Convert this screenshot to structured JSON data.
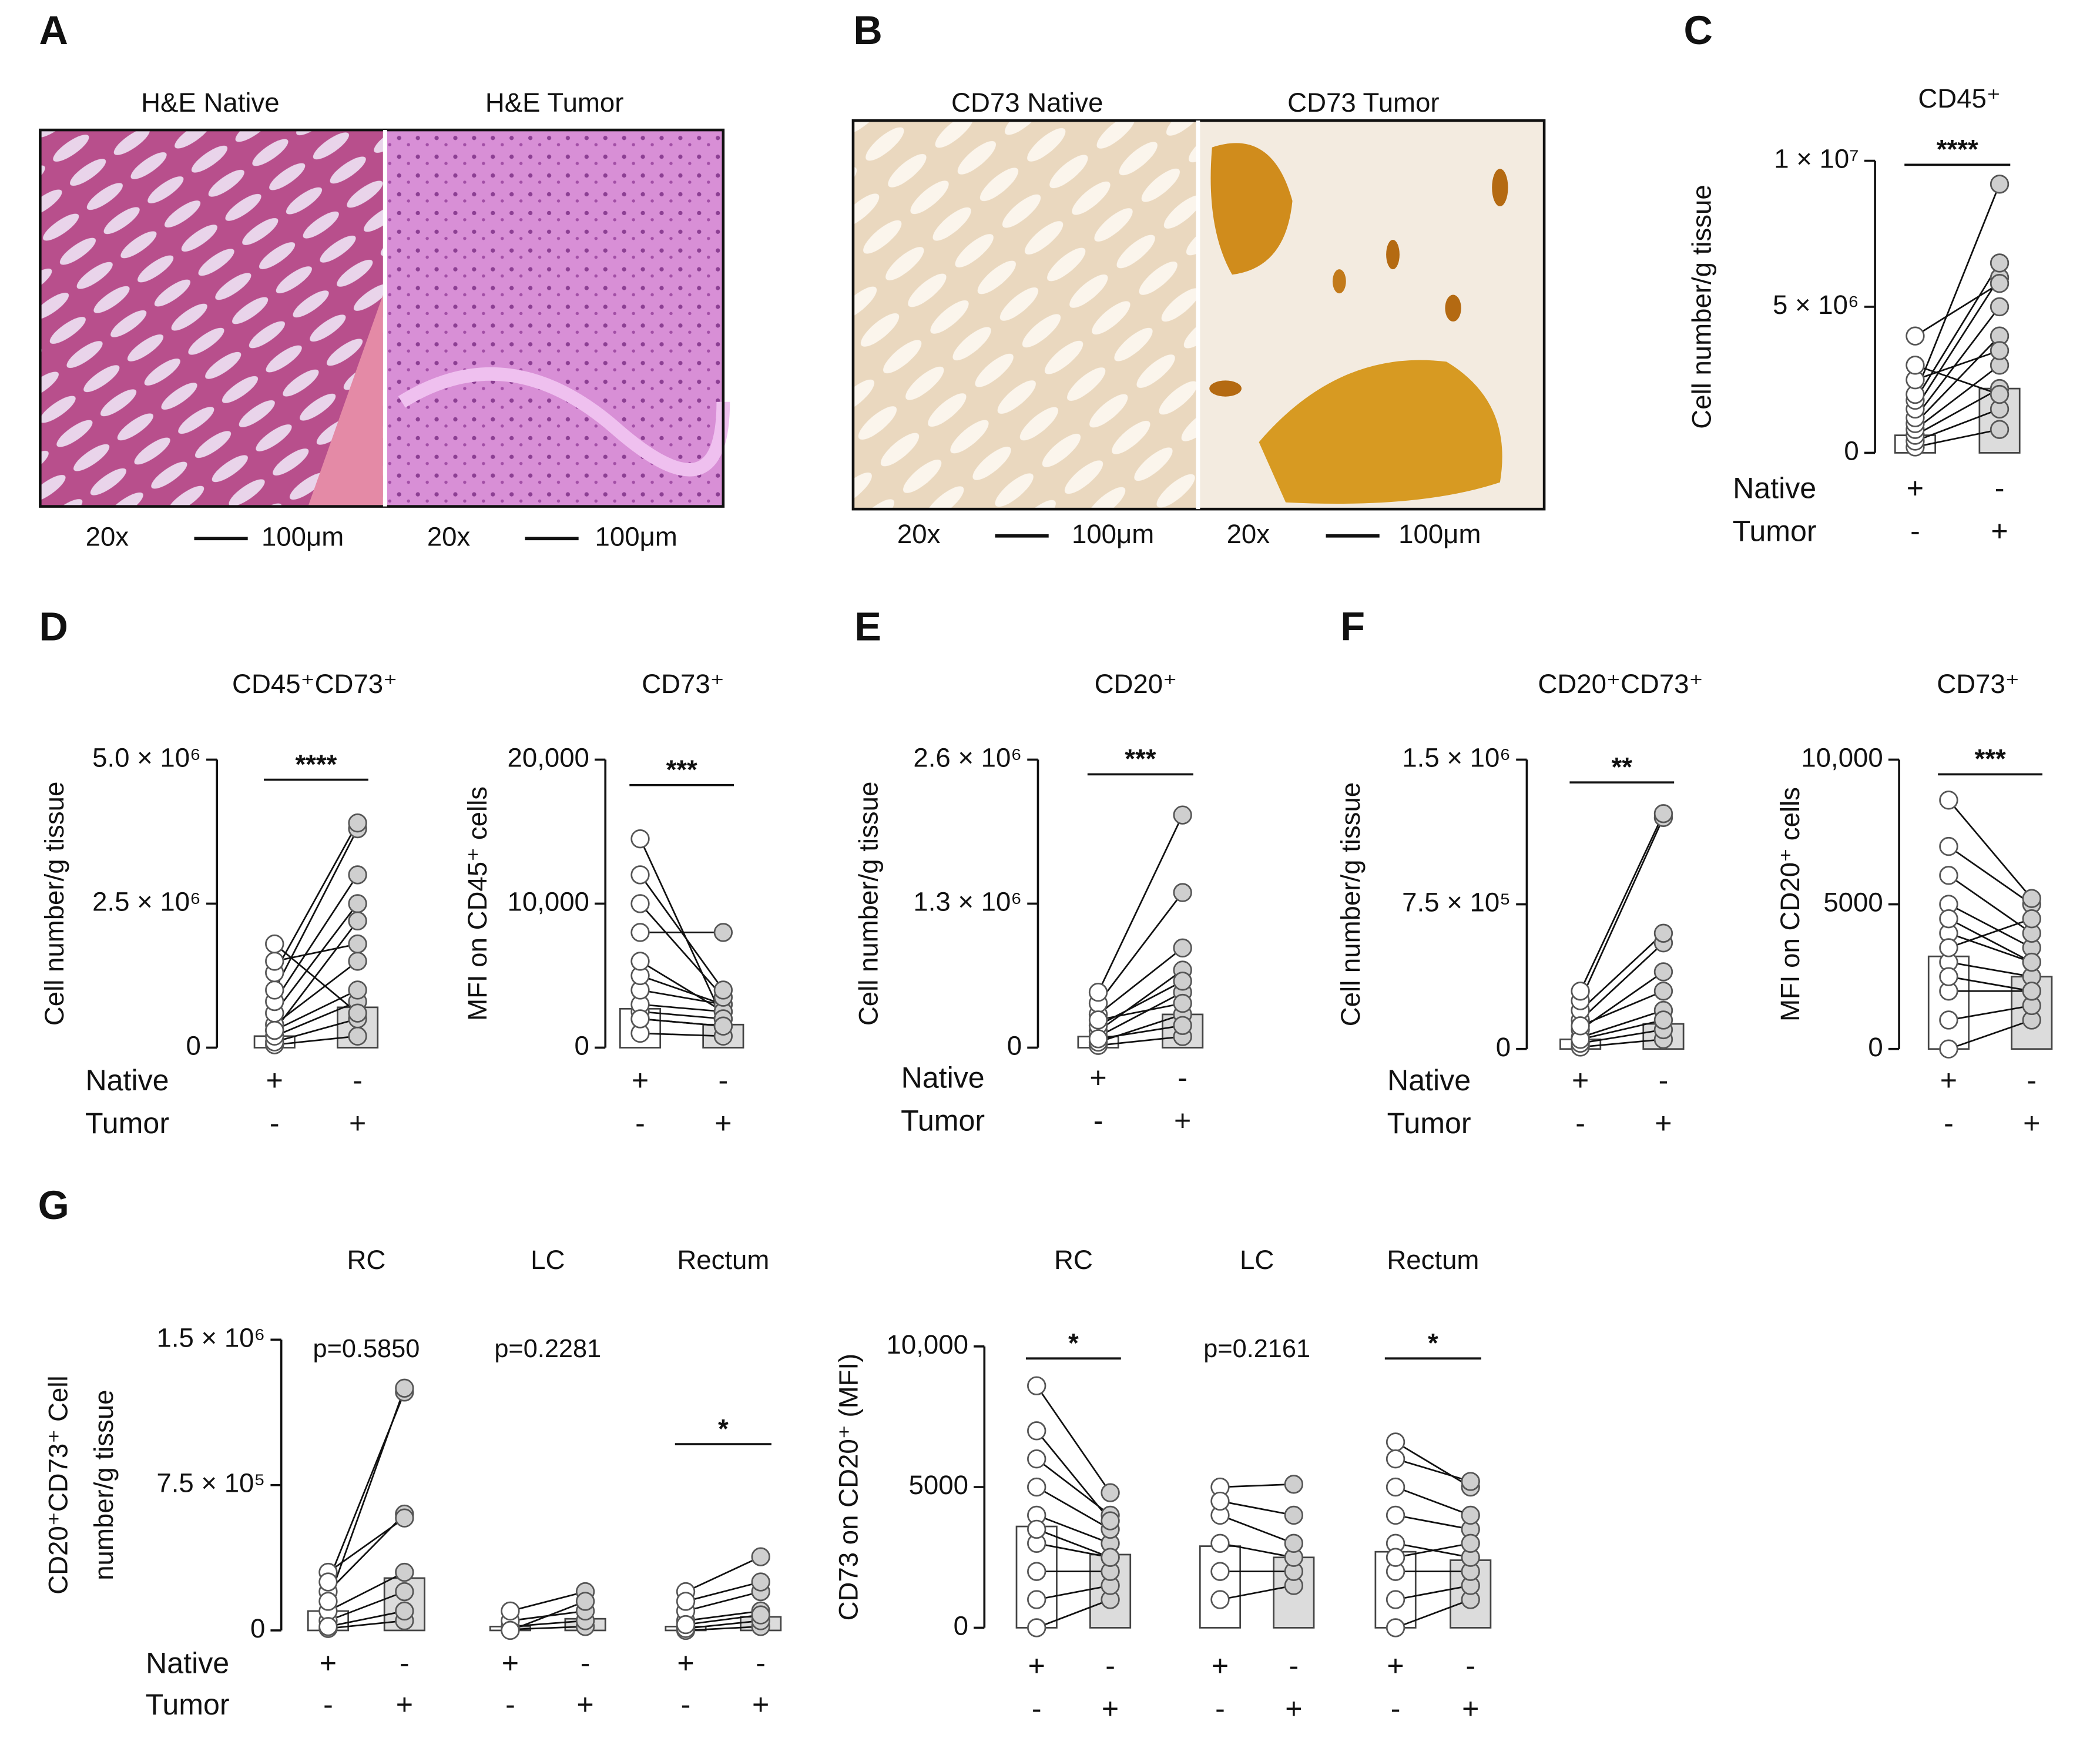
{
  "figure": {
    "panel_labels": [
      "A",
      "B",
      "C",
      "D",
      "E",
      "F",
      "G"
    ],
    "images": [
      {
        "titles": [
          "H&E Native",
          "H&E Tumor"
        ],
        "captions": [
          [
            "20x",
            "100μm"
          ],
          [
            "20x",
            "100μm"
          ]
        ]
      },
      {
        "titles": [
          "CD73 Native",
          "CD73 Tumor"
        ],
        "captions": [
          [
            "20x",
            "100μm"
          ],
          [
            "20x",
            "100μm"
          ]
        ]
      }
    ]
  },
  "chart_data": [
    {
      "type": "paired",
      "title": "CD45⁺",
      "ylabel": "Cell number/g tissue",
      "ylim": [
        0,
        10000000
      ],
      "yticks": [
        0,
        {
          "value": 5000000,
          "label": "5 × 10⁶"
        },
        {
          "value": 10000000,
          "label": "1 × 10⁷"
        }
      ],
      "row_labels": [
        "Native",
        "Tumor"
      ],
      "groups": [
        {
          "significance": "****",
          "bracket": true,
          "columns": [
            {
              "signs": [
                "+",
                "-"
              ],
              "bar": 600000,
              "points": [
                200000,
                400000,
                600000,
                800000,
                1000000,
                1200000,
                1500000,
                1800000,
                2000000,
                2500000,
                3000000,
                4000000
              ]
            },
            {
              "signs": [
                "-",
                "+"
              ],
              "bar": 2200000,
              "points": [
                800000,
                1500000,
                2200000,
                3000000,
                4000000,
                5000000,
                6000000,
                6500000,
                9200000,
                3500000,
                2000000,
                5800000
              ]
            }
          ]
        }
      ]
    },
    {
      "type": "paired",
      "title": "CD45⁺CD73⁺",
      "ylabel": "Cell number/g tissue",
      "ylim": [
        0,
        5000000
      ],
      "yticks": [
        0,
        {
          "value": 2500000,
          "label": "2.5 × 10⁶"
        },
        {
          "value": 5000000,
          "label": "5.0 × 10⁶"
        }
      ],
      "row_labels": [
        "Native",
        "Tumor"
      ],
      "groups": [
        {
          "significance": "****",
          "bracket": true,
          "columns": [
            {
              "signs": [
                "+",
                "-"
              ],
              "bar": 200000,
              "points": [
                50000,
                100000,
                200000,
                300000,
                400000,
                600000,
                800000,
                1000000,
                1300000,
                1500000,
                1800000,
                300000
              ]
            },
            {
              "signs": [
                "-",
                "+"
              ],
              "bar": 700000,
              "points": [
                200000,
                500000,
                800000,
                1000000,
                1500000,
                2500000,
                3000000,
                3800000,
                3900000,
                1800000,
                600000,
                2200000
              ]
            }
          ]
        }
      ]
    },
    {
      "type": "paired",
      "title": "CD73⁺",
      "ylabel": "MFI on CD45⁺ cells",
      "ylim": [
        0,
        20000
      ],
      "yticks": [
        0,
        {
          "value": 10000,
          "label": "10,000"
        },
        {
          "value": 20000,
          "label": "20,000"
        }
      ],
      "groups": [
        {
          "significance": "***",
          "bracket": true,
          "columns": [
            {
              "signs": [
                "+",
                "-"
              ],
              "bar": 2700,
              "points": [
                1000,
                2000,
                2500,
                3000,
                4000,
                5000,
                6000,
                8000,
                10000,
                12000,
                14500,
                2000
              ]
            },
            {
              "signs": [
                "-",
                "+"
              ],
              "bar": 1600,
              "points": [
                800,
                1500,
                2000,
                2500,
                3000,
                3000,
                2500,
                8000,
                3500,
                4000,
                2000,
                1500
              ]
            }
          ]
        }
      ]
    },
    {
      "type": "paired",
      "title": "CD20⁺",
      "ylabel": "Cell number/g tissue",
      "ylim": [
        0,
        2600000
      ],
      "yticks": [
        0,
        {
          "value": 1300000,
          "label": "1.3 × 10⁶"
        },
        {
          "value": 2600000,
          "label": "2.6 × 10⁶"
        }
      ],
      "row_labels": [
        "Native",
        "Tumor"
      ],
      "groups": [
        {
          "significance": "***",
          "bracket": true,
          "columns": [
            {
              "signs": [
                "+",
                "-"
              ],
              "bar": 100000,
              "points": [
                20000,
                50000,
                100000,
                150000,
                200000,
                300000,
                400000,
                500000,
                80000,
                250000
              ]
            },
            {
              "signs": [
                "-",
                "+"
              ],
              "bar": 300000,
              "points": [
                100000,
                300000,
                500000,
                700000,
                600000,
                900000,
                1400000,
                2100000,
                200000,
                400000
              ]
            }
          ]
        }
      ]
    },
    {
      "type": "paired",
      "title": "CD20⁺CD73⁺",
      "ylabel": "Cell number/g tissue",
      "ylim": [
        0,
        1500000
      ],
      "yticks": [
        0,
        {
          "value": 750000,
          "label": "7.5 × 10⁵"
        },
        {
          "value": 1500000,
          "label": "1.5 × 10⁶"
        }
      ],
      "row_labels": [
        "Native",
        "Tumor"
      ],
      "groups": [
        {
          "significance": "**",
          "bracket": true,
          "columns": [
            {
              "signs": [
                "+",
                "-"
              ],
              "bar": 50000,
              "points": [
                10000,
                30000,
                60000,
                100000,
                150000,
                200000,
                250000,
                300000,
                50000,
                120000
              ]
            },
            {
              "signs": [
                "-",
                "+"
              ],
              "bar": 130000,
              "points": [
                50000,
                100000,
                200000,
                400000,
                550000,
                600000,
                1200000,
                1220000,
                150000,
                300000
              ]
            }
          ]
        }
      ]
    },
    {
      "type": "paired",
      "title": "CD73⁺",
      "ylabel": "MFI on CD20⁺ cells",
      "ylim": [
        0,
        10000
      ],
      "yticks": [
        0,
        5000,
        {
          "value": 10000,
          "label": "10,000"
        }
      ],
      "groups": [
        {
          "significance": "***",
          "bracket": true,
          "columns": [
            {
              "signs": [
                "+",
                "-"
              ],
              "bar": 3200,
              "points": [
                0,
                1000,
                2000,
                3000,
                4000,
                5000,
                6000,
                7000,
                8600,
                2500,
                3500,
                4500
              ]
            },
            {
              "signs": [
                "-",
                "+"
              ],
              "bar": 2500,
              "points": [
                1000,
                1500,
                2000,
                2500,
                3000,
                3500,
                4000,
                5000,
                5200,
                2000,
                4500,
                3000
              ]
            }
          ]
        }
      ]
    },
    {
      "type": "paired",
      "ylabel": [
        "CD20⁺CD73⁺ Cell",
        "number/g tissue"
      ],
      "ylim": [
        0,
        1500000
      ],
      "yticks": [
        0,
        {
          "value": 750000,
          "label": "7.5 × 10⁵"
        },
        {
          "value": 1500000,
          "label": "1.5 × 10⁶"
        }
      ],
      "row_labels": [
        "Native",
        "Tumor"
      ],
      "groups": [
        {
          "subtitle": "RC",
          "significance": "p=0.5850",
          "bracket": false,
          "columns": [
            {
              "signs": [
                "+",
                "-"
              ],
              "bar": 100000,
              "points": [
                10000,
                50000,
                100000,
                200000,
                300000,
                250000,
                150000,
                20000
              ]
            },
            {
              "signs": [
                "-",
                "+"
              ],
              "bar": 270000,
              "points": [
                50000,
                200000,
                300000,
                600000,
                580000,
                1230000,
                1250000,
                100000
              ]
            }
          ]
        },
        {
          "subtitle": "LC",
          "significance": "p=0.2281",
          "bracket": false,
          "columns": [
            {
              "signs": [
                "+",
                "-"
              ],
              "bar": 20000,
              "points": [
                5000,
                20000,
                50000,
                100000,
                0
              ]
            },
            {
              "signs": [
                "-",
                "+"
              ],
              "bar": 60000,
              "points": [
                20000,
                50000,
                100000,
                200000,
                150000
              ]
            }
          ]
        },
        {
          "subtitle": "Rectum",
          "significance": "*",
          "bracket": true,
          "columns": [
            {
              "signs": [
                "+",
                "-"
              ],
              "bar": 20000,
              "points": [
                0,
                10000,
                50000,
                100000,
                200000,
                150000,
                30000
              ]
            },
            {
              "signs": [
                "-",
                "+"
              ],
              "bar": 70000,
              "points": [
                20000,
                50000,
                100000,
                200000,
                380000,
                250000,
                80000
              ]
            }
          ]
        }
      ]
    },
    {
      "type": "paired",
      "ylabel": "CD73 on CD20⁺ (MFI)",
      "ylim": [
        0,
        10000
      ],
      "yticks": [
        0,
        5000,
        {
          "value": 10000,
          "label": "10,000"
        }
      ],
      "groups": [
        {
          "subtitle": "RC",
          "significance": "*",
          "bracket": true,
          "columns": [
            {
              "signs": [
                "+",
                "-"
              ],
              "bar": 3600,
              "points": [
                0,
                1000,
                2000,
                3000,
                4000,
                5000,
                6000,
                8600,
                7000,
                3500
              ]
            },
            {
              "signs": [
                "-",
                "+"
              ],
              "bar": 2600,
              "points": [
                1000,
                1500,
                2000,
                2500,
                3000,
                3500,
                4000,
                4800,
                3800,
                2500
              ]
            }
          ]
        },
        {
          "subtitle": "LC",
          "significance": "p=0.2161",
          "bracket": false,
          "columns": [
            {
              "signs": [
                "+",
                "-"
              ],
              "bar": 2900,
              "points": [
                1000,
                2000,
                3000,
                4000,
                5000,
                4500
              ]
            },
            {
              "signs": [
                "-",
                "+"
              ],
              "bar": 2500,
              "points": [
                1500,
                2000,
                2500,
                3000,
                5100,
                4000
              ]
            }
          ]
        },
        {
          "subtitle": "Rectum",
          "significance": "*",
          "bracket": true,
          "columns": [
            {
              "signs": [
                "+",
                "-"
              ],
              "bar": 2700,
              "points": [
                0,
                1000,
                2000,
                3000,
                4000,
                5000,
                6600,
                6000,
                2500
              ]
            },
            {
              "signs": [
                "-",
                "+"
              ],
              "bar": 2400,
              "points": [
                1000,
                1500,
                2000,
                2500,
                3500,
                4000,
                5000,
                5200,
                3000
              ]
            }
          ]
        }
      ]
    }
  ]
}
